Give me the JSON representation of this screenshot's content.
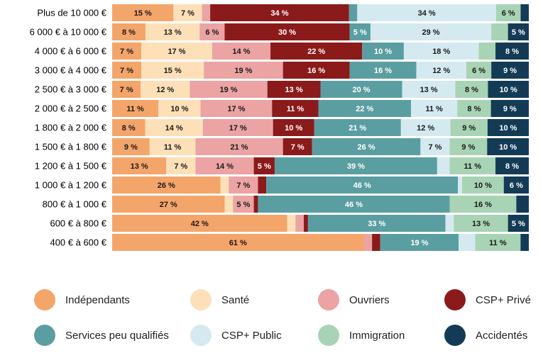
{
  "chart_data": {
    "type": "bar",
    "orientation": "horizontal",
    "stacked": true,
    "normalized": true,
    "title": "",
    "xlabel": "",
    "ylabel": "",
    "xlim": [
      0,
      100
    ],
    "grid": false,
    "legend_position": "bottom",
    "categories": [
      "Plus de 10 000 €",
      "6 000 € à 10 000 €",
      "4 000 € à 6 000 €",
      "3 000 € à 4 000 €",
      "2 500 € à 3 000 €",
      "2 000 € à 2 500 €",
      "1 800 € à 2 000 €",
      "1 500 € à 1 800 €",
      "1 200 € à 1 500 €",
      "1 000 € à 1 200 €",
      "800 € à 1 000 €",
      "600 € à 800 €",
      "400 € à 600 €"
    ],
    "series": [
      {
        "name": "Indépendants",
        "color": "#f4a56a",
        "dark_text": true,
        "values": [
          15,
          8,
          7,
          7,
          7,
          11,
          8,
          9,
          13,
          26,
          27,
          42,
          61
        ]
      },
      {
        "name": "Santé",
        "color": "#fde0b8",
        "dark_text": true,
        "values": [
          7,
          13,
          17,
          15,
          12,
          10,
          14,
          11,
          7,
          2,
          2,
          2,
          0
        ]
      },
      {
        "name": "Ouvriers",
        "color": "#eba3a3",
        "dark_text": true,
        "values": [
          2,
          6,
          14,
          19,
          19,
          17,
          17,
          21,
          14,
          7,
          5,
          2,
          2
        ]
      },
      {
        "name": "CSP+ Privé",
        "color": "#8b1a1a",
        "dark_text": false,
        "values": [
          34,
          30,
          22,
          16,
          13,
          11,
          10,
          7,
          5,
          2,
          1,
          1,
          2
        ]
      },
      {
        "name": "Services peu qualifiés",
        "color": "#5b9ea2",
        "dark_text": false,
        "values": [
          2,
          5,
          10,
          16,
          20,
          22,
          21,
          26,
          39,
          46,
          46,
          33,
          19
        ]
      },
      {
        "name": "CSP+ Public",
        "color": "#d4eaf0",
        "dark_text": true,
        "values": [
          34,
          29,
          18,
          12,
          13,
          11,
          12,
          7,
          3,
          1,
          0,
          2,
          4
        ]
      },
      {
        "name": "Immigration",
        "color": "#a8d3b4",
        "dark_text": true,
        "values": [
          6,
          4,
          4,
          6,
          8,
          8,
          9,
          9,
          11,
          10,
          16,
          13,
          11
        ]
      },
      {
        "name": "Accidentés",
        "color": "#143b56",
        "dark_text": false,
        "values": [
          2,
          5,
          8,
          9,
          10,
          9,
          10,
          10,
          8,
          6,
          3,
          5,
          2
        ]
      }
    ]
  }
}
